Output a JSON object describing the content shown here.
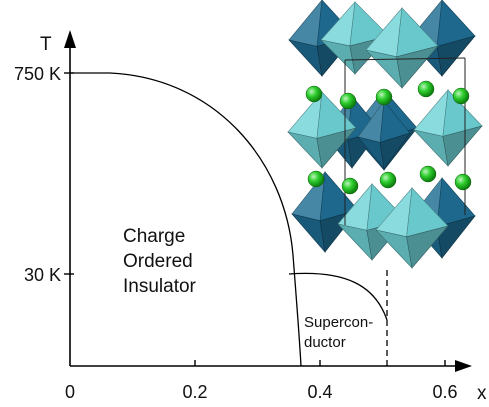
{
  "diagram": {
    "axes": {
      "y_title": "T",
      "x_title": "x",
      "y_ticks": [
        "750 K",
        "30 K"
      ],
      "x_ticks": [
        "0",
        "0.2",
        "0.4",
        "0.6"
      ]
    },
    "regions": {
      "charge_ordered": [
        "Charge",
        "Ordered",
        "Insulator"
      ],
      "superconductor": [
        "Supercon-",
        "ductor"
      ]
    },
    "crystal": {
      "dark_octahedron_color": "#1f6d93",
      "light_octahedron_color": "#6fd3d7",
      "atom_color": "#22b922"
    }
  }
}
